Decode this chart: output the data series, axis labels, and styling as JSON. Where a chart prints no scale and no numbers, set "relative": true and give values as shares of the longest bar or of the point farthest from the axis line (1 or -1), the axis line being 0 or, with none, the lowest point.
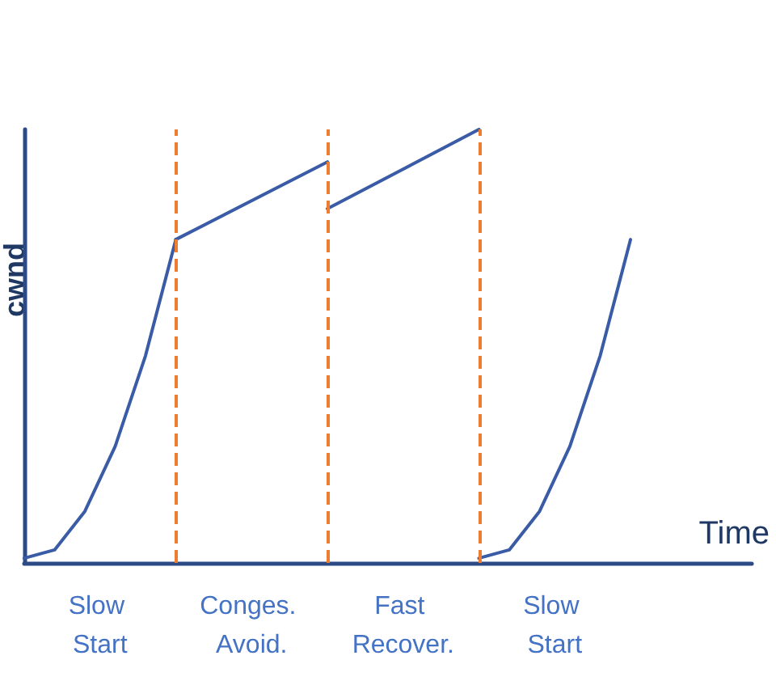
{
  "chart_data": {
    "type": "line",
    "relative": true,
    "xlabel": "Time",
    "ylabel": "cwnd",
    "marker": "none",
    "grid": "x",
    "line_style": "solid",
    "categories": [
      null,
      null,
      null,
      null,
      null,
      null,
      null,
      null,
      null,
      null,
      null,
      null,
      null,
      null,
      null,
      null,
      null,
      null,
      null,
      null,
      null,
      null,
      null,
      null,
      null
    ],
    "series": [
      {
        "color": "#3a5ba5",
        "values": [
          0.011,
          0.03,
          0.119,
          0.269,
          0.478,
          0.746,
          null,
          null,
          null,
          null,
          null,
          null,
          null,
          null,
          null,
          null,
          null,
          null,
          null,
          null,
          null,
          null,
          null,
          null,
          null
        ]
      },
      {
        "color": "#3a5ba5",
        "values": [
          null,
          null,
          null,
          null,
          null,
          0.746,
          null,
          null,
          null,
          null,
          0.925,
          null,
          null,
          null,
          null,
          null,
          null,
          null,
          null,
          null,
          null,
          null,
          null,
          null,
          null
        ]
      },
      {
        "color": "#3a5ba5",
        "values": [
          null,
          null,
          null,
          null,
          null,
          null,
          null,
          null,
          null,
          null,
          0.817,
          null,
          null,
          null,
          null,
          1,
          null,
          null,
          null,
          null,
          null,
          null,
          null,
          null,
          null
        ]
      },
      {
        "color": "#3a5ba5",
        "values": [
          null,
          null,
          null,
          null,
          null,
          null,
          null,
          null,
          null,
          null,
          null,
          null,
          null,
          null,
          null,
          0.011,
          0.03,
          0.119,
          0.269,
          0.478,
          0.746,
          null,
          null,
          null,
          null
        ]
      }
    ],
    "annotations": [
      "Slow Start",
      "Conges. Avoid.",
      "Fast Recover.",
      "Slow Start"
    ]
  }
}
